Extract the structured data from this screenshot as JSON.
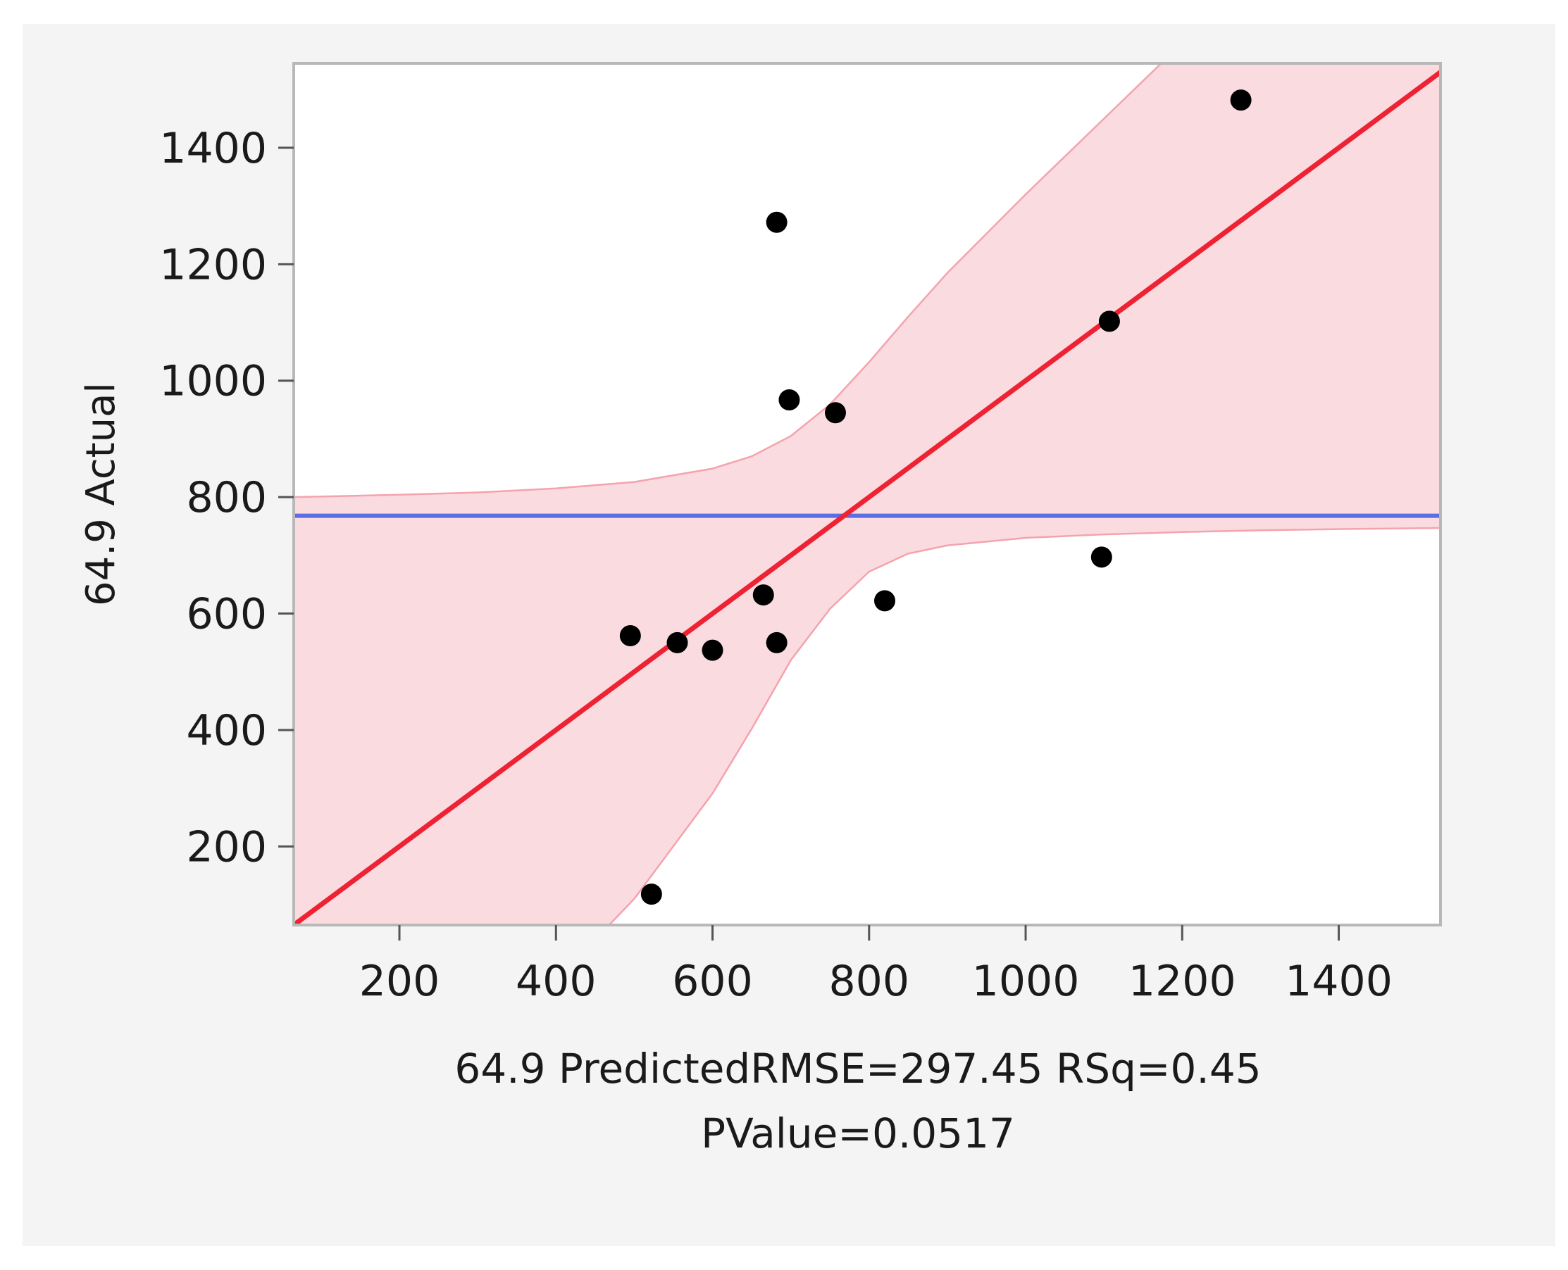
{
  "chart_data": {
    "type": "scatter",
    "title": "",
    "xlabel": "64.9 Predicted",
    "ylabel": "64.9 Actual",
    "stats": {
      "line1": "RMSE=297.45 RSq=0.45",
      "line2": "PValue=0.0517"
    },
    "xlim": [
      65,
      1530
    ],
    "ylim": [
      65,
      1545
    ],
    "x_ticks": [
      200,
      400,
      600,
      800,
      1000,
      1200,
      1400
    ],
    "y_ticks": [
      200,
      400,
      600,
      800,
      1000,
      1200,
      1400
    ],
    "grid": false,
    "legend": "none",
    "points": [
      {
        "x": 495,
        "y": 562
      },
      {
        "x": 522,
        "y": 118
      },
      {
        "x": 555,
        "y": 550
      },
      {
        "x": 600,
        "y": 537
      },
      {
        "x": 665,
        "y": 632
      },
      {
        "x": 682,
        "y": 550
      },
      {
        "x": 682,
        "y": 1272
      },
      {
        "x": 698,
        "y": 967
      },
      {
        "x": 757,
        "y": 945
      },
      {
        "x": 820,
        "y": 622
      },
      {
        "x": 1097,
        "y": 697
      },
      {
        "x": 1107,
        "y": 1102
      },
      {
        "x": 1275,
        "y": 1482
      }
    ],
    "fit_line": {
      "slope": 1,
      "intercept": 0
    },
    "mean_line": {
      "y": 768
    },
    "confidence_band": {
      "x": [
        65,
        200,
        300,
        400,
        500,
        600,
        650,
        700,
        750,
        800,
        850,
        900,
        1000,
        1100,
        1200,
        1300,
        1400,
        1530
      ],
      "upper": [
        800,
        804,
        808,
        815,
        826,
        849,
        870,
        905,
        959,
        1032,
        1110,
        1185,
        1320,
        1450,
        1580,
        1700,
        1820,
        1960
      ],
      "lower": [
        -400,
        -256,
        -150,
        -30,
        110,
        291,
        402,
        520,
        608,
        672,
        703,
        717,
        730,
        736,
        740,
        743,
        745,
        747
      ]
    },
    "colors": {
      "fit": "#ee2233",
      "band_fill": "#fadbe0",
      "band_edge": "#f4a3ad",
      "mean": "#5a6ee6",
      "points": "#000000",
      "frame": "#b8b8b8"
    }
  }
}
